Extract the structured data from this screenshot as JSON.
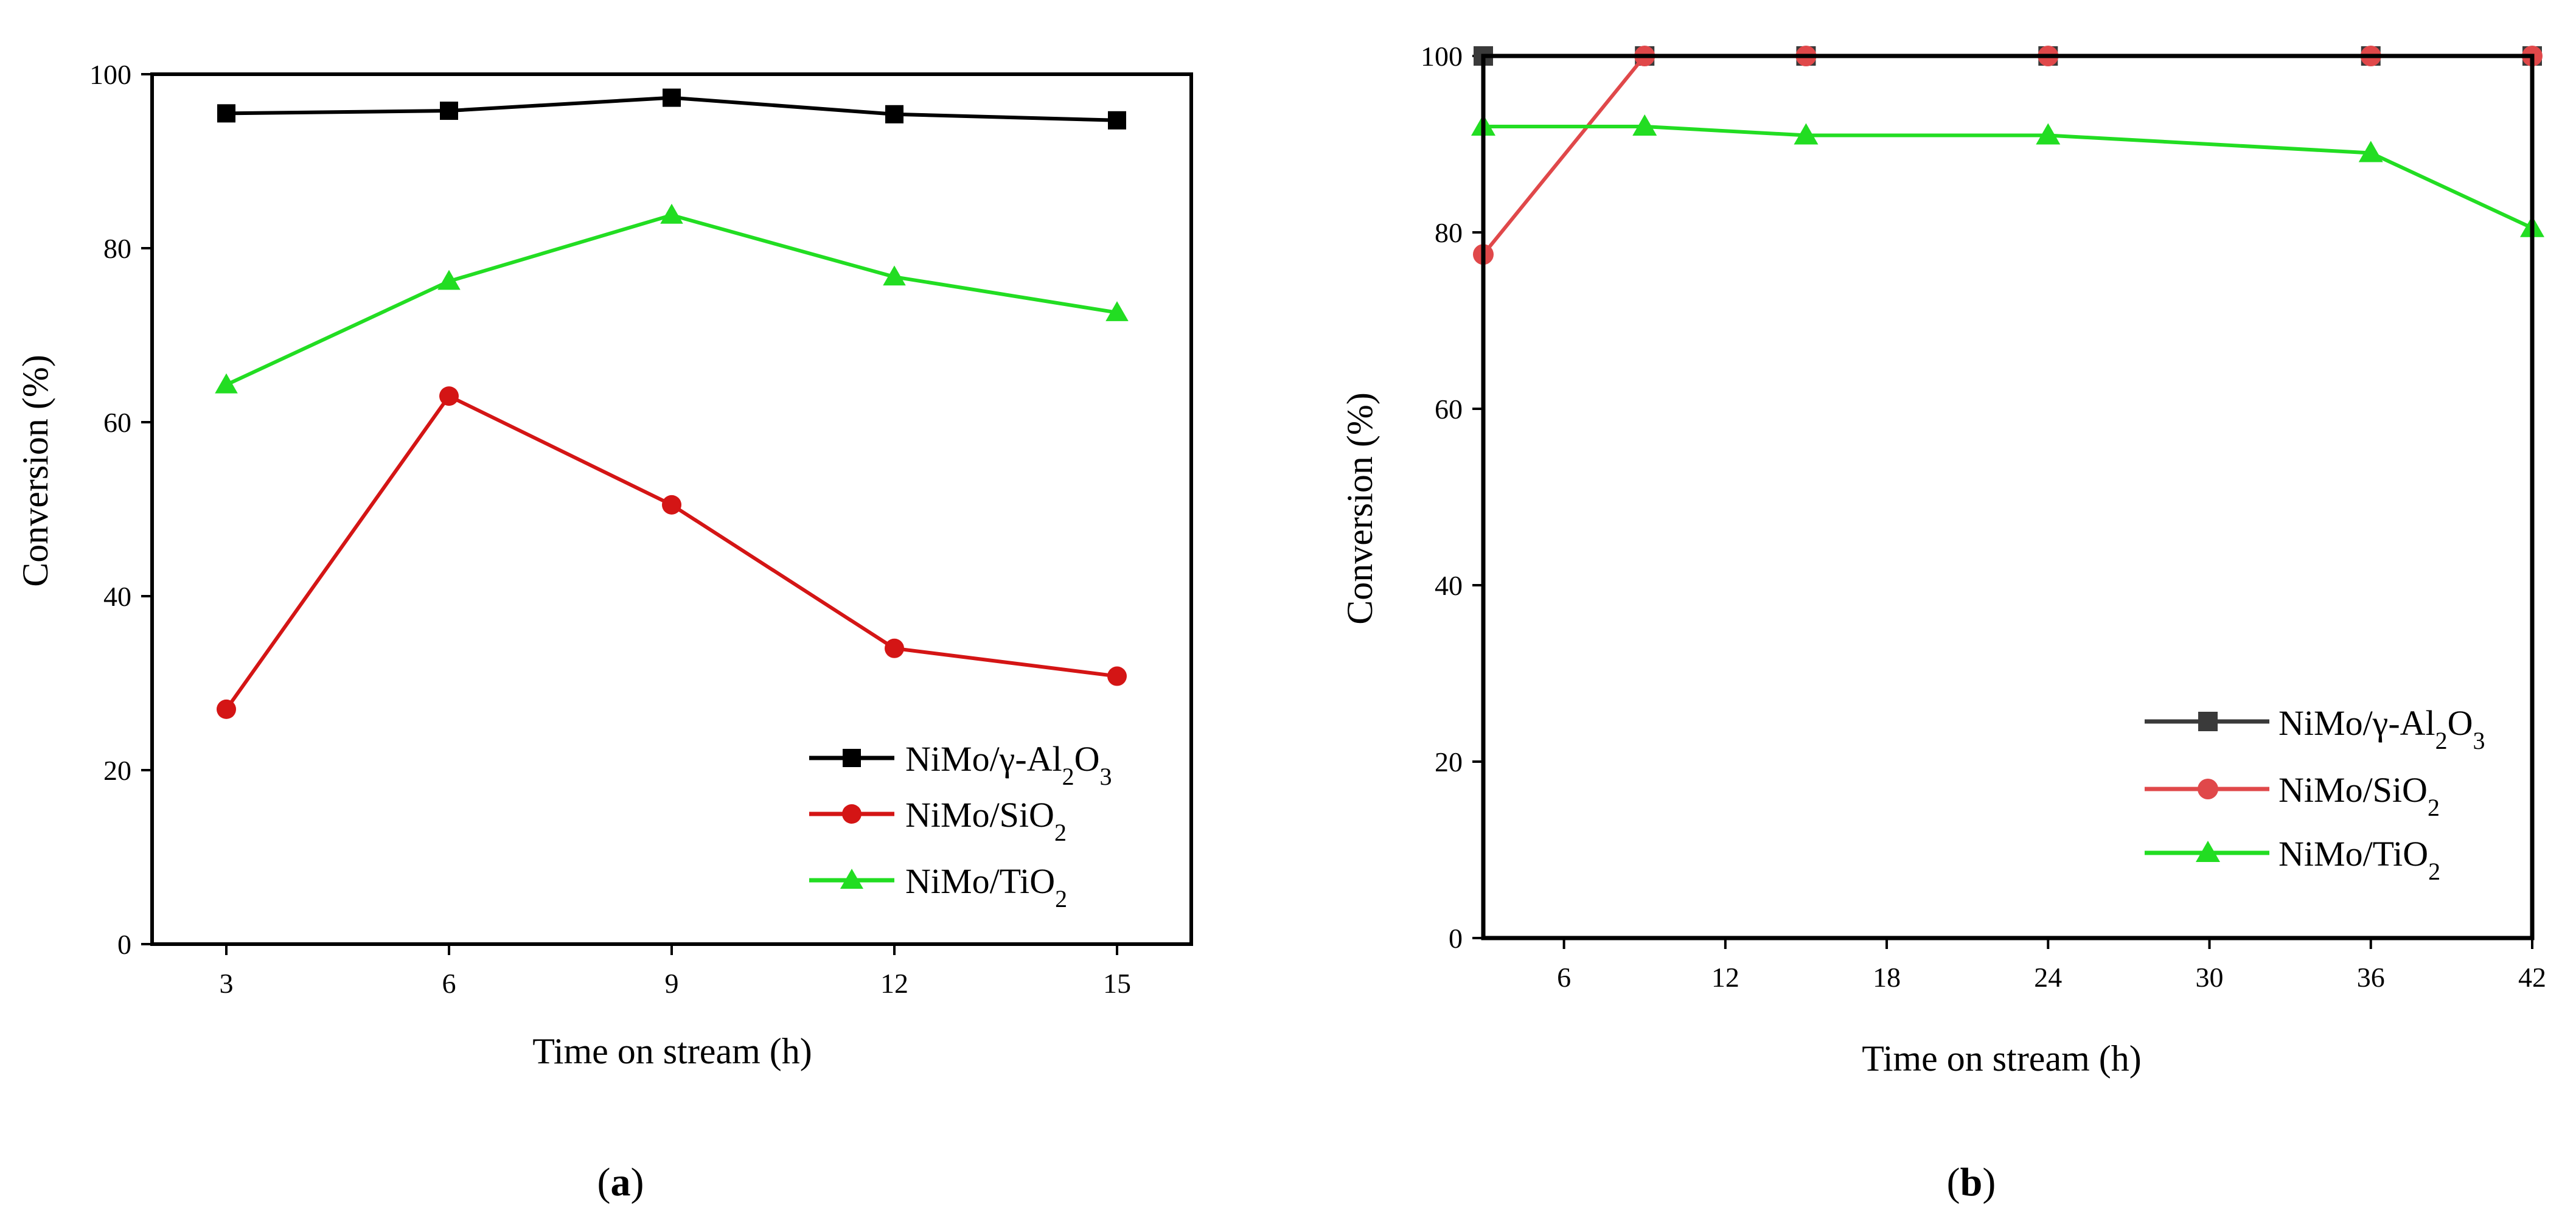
{
  "figure": {
    "panel_labels": [
      {
        "open": "(",
        "letter": "a",
        "close": ")"
      },
      {
        "open": "(",
        "letter": "b",
        "close": ")"
      }
    ]
  },
  "chart_data": [
    {
      "id": "a",
      "type": "line",
      "xlabel": "Time on stream (h)",
      "ylabel": "Conversion (%)",
      "xlim": [
        2,
        16
      ],
      "ylim": [
        0,
        100
      ],
      "x_ticks": [
        "3",
        "6",
        "9",
        "12",
        "15"
      ],
      "x_tick_values": [
        3,
        6,
        9,
        12,
        15
      ],
      "y_ticks": [
        "0",
        "20",
        "40",
        "60",
        "80",
        "100"
      ],
      "y_tick_values": [
        0,
        20,
        40,
        60,
        80,
        100
      ],
      "legend_position": "bottom-right",
      "series": [
        {
          "name": "NiMo/γ-Al2O3",
          "legend_base": "NiMo/γ-Al",
          "legend_sub1": "2",
          "legend_mid": "O",
          "legend_sub2": "3",
          "color": "#000000",
          "marker": "square",
          "x": [
            3,
            6,
            9,
            12,
            15
          ],
          "values": [
            95.5,
            95.8,
            97.3,
            95.4,
            94.7
          ]
        },
        {
          "name": "NiMo/SiO2",
          "legend_base": "NiMo/SiO",
          "legend_sub1": "2",
          "legend_mid": "",
          "legend_sub2": "",
          "color": "#d41515",
          "marker": "circle",
          "x": [
            3,
            6,
            9,
            12,
            15
          ],
          "values": [
            27,
            63,
            50.5,
            34,
            30.8
          ]
        },
        {
          "name": "NiMo/TiO2",
          "legend_base": "NiMo/TiO",
          "legend_sub1": "2",
          "legend_mid": "",
          "legend_sub2": "",
          "color": "#22dd22",
          "marker": "triangle",
          "x": [
            3,
            6,
            9,
            12,
            15
          ],
          "values": [
            64.3,
            76.2,
            83.8,
            76.7,
            72.6
          ]
        }
      ]
    },
    {
      "id": "b",
      "type": "line",
      "xlabel": "Time on stream (h)",
      "ylabel": "Conversion (%)",
      "xlim": [
        3,
        42
      ],
      "ylim": [
        0,
        100
      ],
      "x_ticks": [
        "6",
        "12",
        "18",
        "24",
        "30",
        "36",
        "42"
      ],
      "x_tick_values": [
        6,
        12,
        18,
        24,
        30,
        36,
        42
      ],
      "y_ticks": [
        "0",
        "20",
        "40",
        "60",
        "80",
        "100"
      ],
      "y_tick_values": [
        0,
        20,
        40,
        60,
        80,
        100
      ],
      "legend_position": "bottom-right",
      "series": [
        {
          "name": "NiMo/γ-Al2O3",
          "legend_base": "NiMo/γ-Al",
          "legend_sub1": "2",
          "legend_mid": "O",
          "legend_sub2": "3",
          "color": "#3a3a3a",
          "marker": "square",
          "x": [
            3,
            9,
            15,
            24,
            36,
            42
          ],
          "values": [
            100,
            100,
            100,
            100,
            100,
            100
          ]
        },
        {
          "name": "NiMo/SiO2",
          "legend_base": "NiMo/SiO",
          "legend_sub1": "2",
          "legend_mid": "",
          "legend_sub2": "",
          "color": "#e0484a",
          "marker": "circle",
          "x": [
            3,
            9,
            15,
            24,
            36,
            42
          ],
          "values": [
            77.5,
            100,
            100,
            100,
            100,
            100
          ]
        },
        {
          "name": "NiMo/TiO2",
          "legend_base": "NiMo/TiO",
          "legend_sub1": "2",
          "legend_mid": "",
          "legend_sub2": "",
          "color": "#22dd22",
          "marker": "triangle",
          "x": [
            3,
            9,
            15,
            24,
            36,
            42
          ],
          "values": [
            92,
            92,
            91,
            91,
            89,
            80.5
          ]
        }
      ]
    }
  ]
}
